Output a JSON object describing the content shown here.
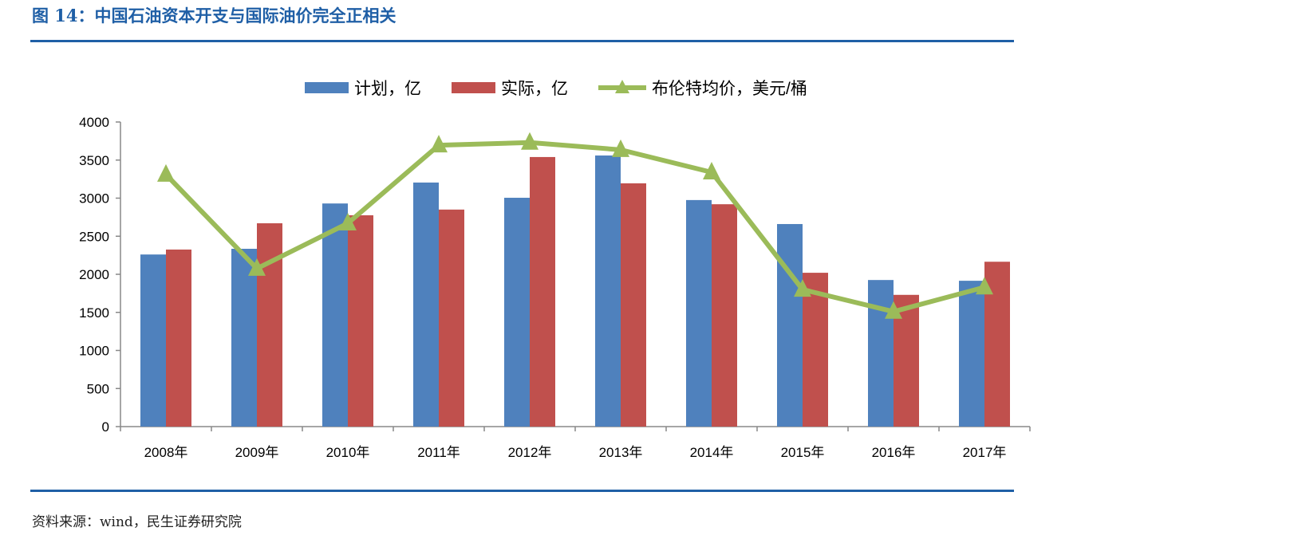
{
  "figure_title": "图 14：中国石油资本开支与国际油价完全正相关",
  "source": "资料来源：wind，民生证券研究院",
  "chart_data": {
    "type": "bar",
    "categories": [
      "2008年",
      "2009年",
      "2010年",
      "2011年",
      "2012年",
      "2013年",
      "2014年",
      "2015年",
      "2016年",
      "2017年"
    ],
    "series": [
      {
        "name": "计划，亿",
        "type": "bar",
        "color": "#4f81bd",
        "values": [
          2260,
          2335,
          2930,
          3205,
          3005,
          3560,
          2975,
          2660,
          1925,
          1915
        ]
      },
      {
        "name": "实际，亿",
        "type": "bar",
        "color": "#c0504d",
        "values": [
          2325,
          2670,
          2775,
          2850,
          3540,
          3195,
          2920,
          2020,
          1730,
          2165
        ]
      },
      {
        "name": "布伦特均价，美元/桶",
        "type": "line",
        "marker": "triangle",
        "color": "#9bbb59",
        "values": [
          3310,
          2075,
          2670,
          3695,
          3730,
          3635,
          3340,
          1800,
          1510,
          1830
        ]
      }
    ],
    "ylim": [
      0,
      4000
    ],
    "yticks": [
      0,
      500,
      1000,
      1500,
      2000,
      2500,
      3000,
      3500,
      4000
    ],
    "grid": false,
    "legend_position": "top"
  }
}
